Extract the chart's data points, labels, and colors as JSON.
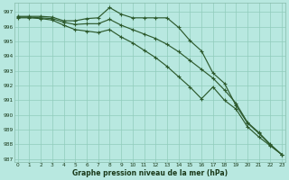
{
  "title": "Graphe pression niveau de la mer (hPa)",
  "bg_color": "#b8e8e0",
  "grid_color": "#90ccbb",
  "line_color": "#2d5a2d",
  "ylim": [
    986.8,
    997.6
  ],
  "xlim": [
    -0.3,
    23.3
  ],
  "yticks": [
    987,
    988,
    989,
    990,
    991,
    992,
    993,
    994,
    995,
    996,
    997
  ],
  "xticks": [
    0,
    1,
    2,
    3,
    4,
    5,
    6,
    7,
    8,
    9,
    10,
    11,
    12,
    13,
    14,
    15,
    16,
    17,
    18,
    19,
    20,
    21,
    22,
    23
  ],
  "line1": [
    996.7,
    996.7,
    996.7,
    996.65,
    996.4,
    996.4,
    996.55,
    996.6,
    997.3,
    996.85,
    996.6,
    996.6,
    996.6,
    996.6,
    995.95,
    995.05,
    994.35,
    992.85,
    992.15,
    990.65,
    989.45,
    988.75,
    987.95,
    987.3
  ],
  "line2": [
    996.65,
    996.65,
    996.6,
    996.55,
    996.3,
    996.15,
    996.2,
    996.2,
    996.5,
    996.1,
    995.8,
    995.5,
    995.2,
    994.8,
    994.3,
    993.7,
    993.1,
    992.5,
    991.7,
    990.8,
    989.5,
    988.8,
    988.0,
    987.3
  ],
  "line3": [
    996.6,
    996.6,
    996.55,
    996.45,
    996.1,
    995.8,
    995.7,
    995.6,
    995.8,
    995.3,
    994.9,
    994.4,
    993.9,
    993.3,
    992.6,
    991.9,
    991.1,
    991.9,
    991.0,
    990.4,
    989.2,
    988.5,
    987.9,
    987.3
  ]
}
